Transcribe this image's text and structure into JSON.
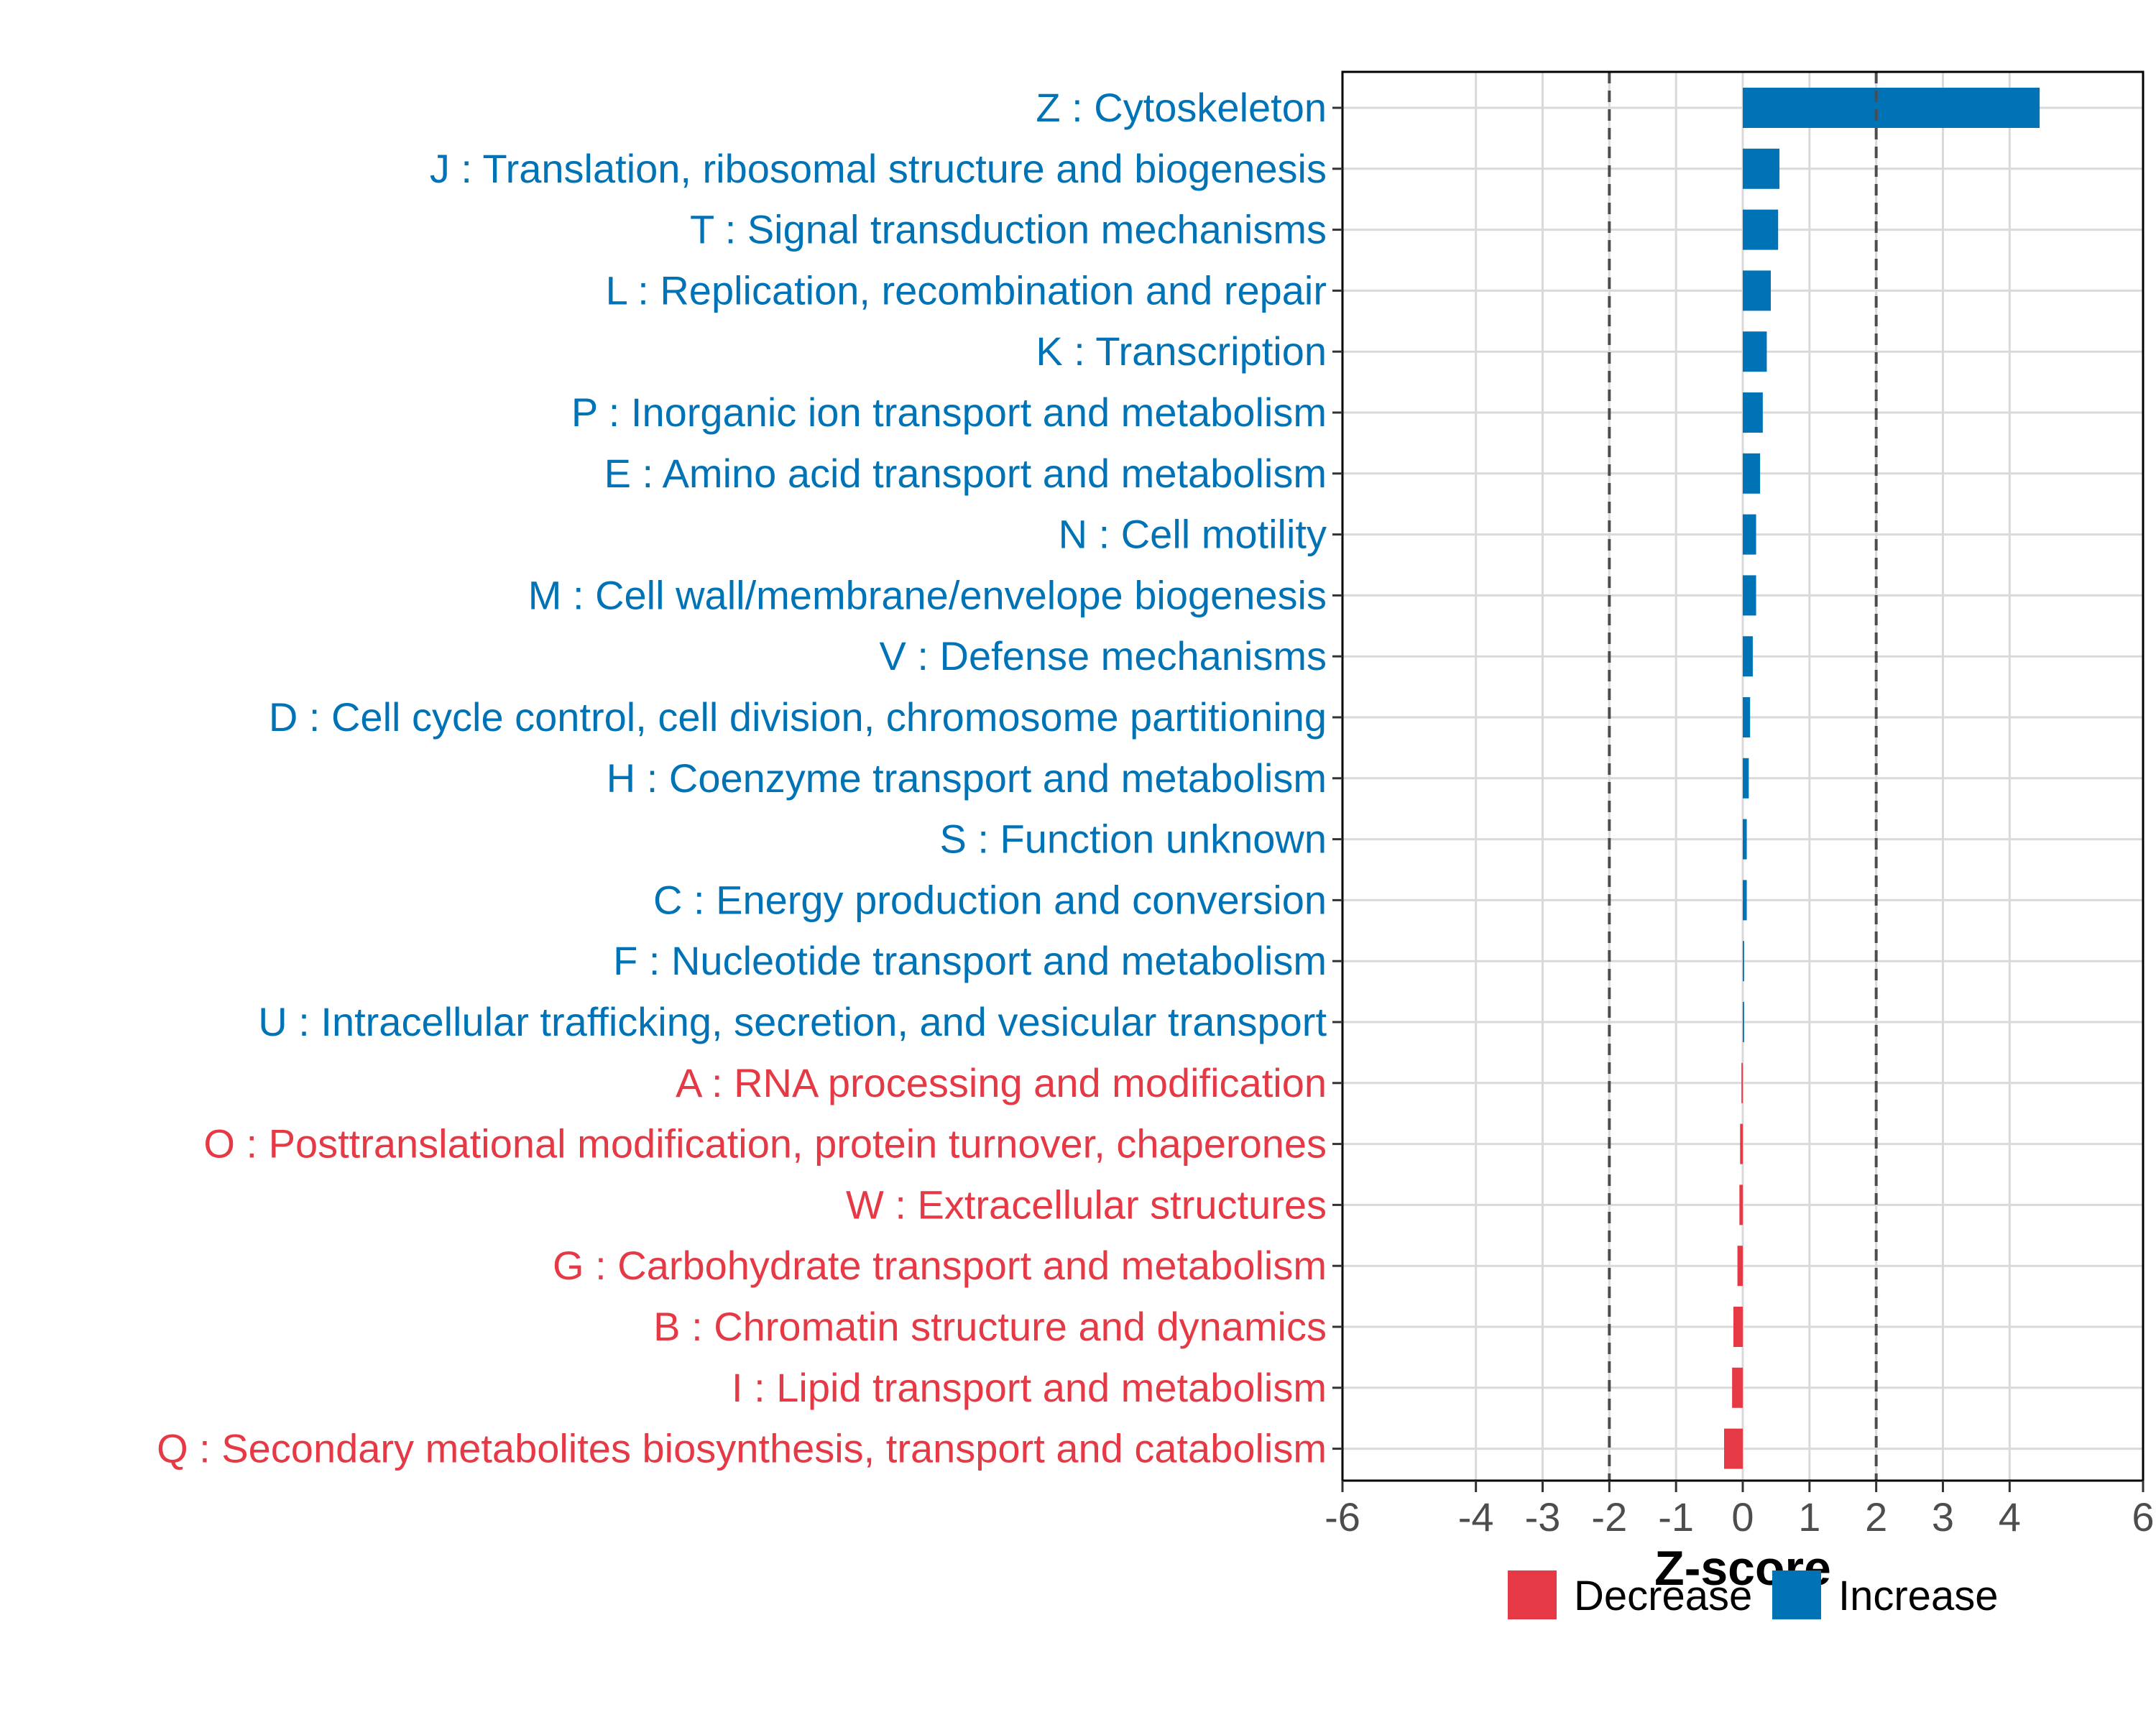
{
  "colors": {
    "increase": "#0073B7",
    "decrease": "#E63946",
    "grid": "#D9D9D9",
    "threshold": "#4D4D4D",
    "axis": "#000000"
  },
  "chart_data": {
    "type": "bar",
    "orientation": "horizontal",
    "xlabel": "Z-score",
    "xlim": [
      -6,
      6
    ],
    "x_ticks": [
      -6,
      -4,
      -3,
      -2,
      -1,
      0,
      1,
      2,
      3,
      4,
      6
    ],
    "x_tick_labels": [
      "-6",
      "-4",
      "-3",
      "-2",
      "-1",
      "0",
      "1",
      "2",
      "3",
      "4",
      "6"
    ],
    "thresholds": [
      -2,
      2
    ],
    "grid": true,
    "legend_position": "bottom",
    "legend": [
      {
        "label": "Decrease",
        "key": "decrease"
      },
      {
        "label": "Increase",
        "key": "increase"
      }
    ],
    "categories": [
      "Z : Cytoskeleton",
      "J : Translation, ribosomal structure and biogenesis",
      "T : Signal transduction mechanisms",
      "L : Replication, recombination and repair",
      "K : Transcription",
      "P : Inorganic ion transport and metabolism",
      "E : Amino acid transport and metabolism",
      "N : Cell motility",
      "M : Cell wall/membrane/envelope biogenesis",
      "V : Defense mechanisms",
      "D : Cell cycle control, cell division, chromosome partitioning",
      "H : Coenzyme transport and metabolism",
      "S : Function unknown",
      "C : Energy production and conversion",
      "F : Nucleotide transport and metabolism",
      "U : Intracellular trafficking, secretion, and vesicular transport",
      "A : RNA processing and modification",
      "O : Posttranslational modification, protein turnover, chaperones",
      "W : Extracellular structures",
      "G : Carbohydrate transport and metabolism",
      "B : Chromatin structure and dynamics",
      "I : Lipid transport and metabolism",
      "Q : Secondary metabolites biosynthesis, transport and catabolism"
    ],
    "values": [
      4.45,
      0.55,
      0.53,
      0.42,
      0.36,
      0.3,
      0.26,
      0.2,
      0.2,
      0.15,
      0.11,
      0.09,
      0.06,
      0.06,
      0.02,
      0.02,
      -0.02,
      -0.04,
      -0.05,
      -0.08,
      -0.14,
      -0.16,
      -0.28
    ]
  }
}
